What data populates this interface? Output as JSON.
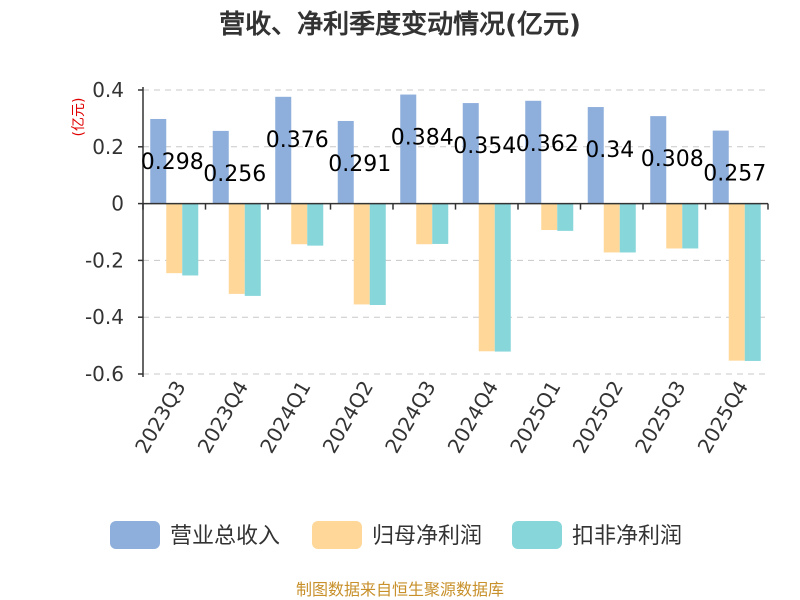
{
  "chart_data": {
    "type": "bar",
    "title": "营收、净利季度变动情况(亿元)",
    "ylabel": "(亿元)",
    "xlabel": "",
    "categories": [
      "2023Q3",
      "2023Q4",
      "2024Q1",
      "2024Q2",
      "2024Q3",
      "2024Q4",
      "2025Q1",
      "2025Q2",
      "2025Q3",
      "2025Q4"
    ],
    "series": [
      {
        "name": "营业总收入",
        "color": "#8eaedc",
        "values": [
          0.298,
          0.256,
          0.376,
          0.291,
          0.384,
          0.354,
          0.362,
          0.34,
          0.308,
          0.257
        ],
        "labels": [
          "0.298",
          "0.256",
          "0.376",
          "0.291",
          "0.384",
          "0.354",
          "0.362",
          "0.34",
          "0.308",
          "0.257"
        ]
      },
      {
        "name": "归母净利润",
        "color": "#ffd799",
        "values": [
          -0.245,
          -0.318,
          -0.143,
          -0.355,
          -0.143,
          -0.52,
          -0.093,
          -0.172,
          -0.158,
          -0.553
        ]
      },
      {
        "name": "扣非净利润",
        "color": "#86d6da",
        "values": [
          -0.253,
          -0.325,
          -0.148,
          -0.357,
          -0.142,
          -0.521,
          -0.096,
          -0.172,
          -0.158,
          -0.554
        ]
      }
    ],
    "yticks": [
      "0.4",
      "0.2",
      "0",
      "-0.2",
      "-0.4",
      "-0.6"
    ],
    "ytick_values": [
      0.4,
      0.2,
      0,
      -0.2,
      -0.4,
      -0.6
    ],
    "ylim": [
      -0.6,
      0.4
    ],
    "grid": true,
    "legend_position": "bottom"
  },
  "source": "制图数据来自恒生聚源数据库"
}
